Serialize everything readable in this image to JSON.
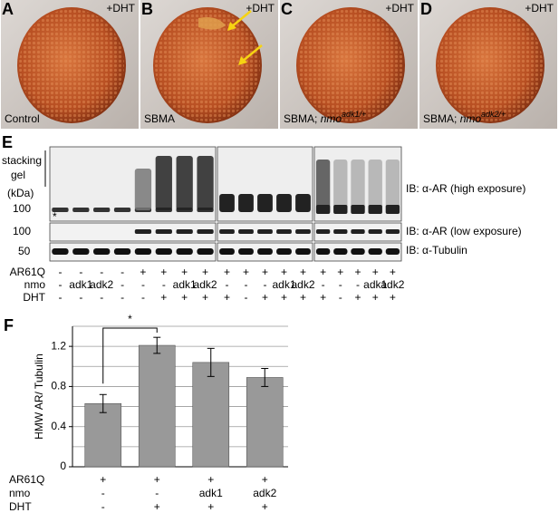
{
  "panels_top": [
    {
      "letter": "A",
      "treatment": "+DHT",
      "label": {
        "text": "Control"
      }
    },
    {
      "letter": "B",
      "treatment": "+DHT",
      "label": {
        "text": "SBMA"
      }
    },
    {
      "letter": "C",
      "treatment": "+DHT",
      "label": {
        "text": "SBMA; ",
        "gene": "nmo",
        "allele": "adk1/+"
      }
    },
    {
      "letter": "D",
      "treatment": "+DHT",
      "label": {
        "text": "SBMA; ",
        "gene": "nmo",
        "allele": "adk2/+"
      }
    }
  ],
  "panel_e": {
    "letter": "E",
    "marker_title": [
      "stacking",
      "gel"
    ],
    "unit": "(kDa)",
    "markers": [
      "100",
      "100",
      "50"
    ],
    "asterisk": "*",
    "blot_labels": [
      "IB: α-AR (high exposure)",
      "IB: α-AR (low exposure)",
      "IB: α-Tubulin"
    ],
    "rows": [
      {
        "label": "AR61Q",
        "cells": [
          "-",
          "-",
          "-",
          "-",
          "+",
          "+",
          "+",
          "+",
          "+",
          "+",
          "+",
          "+",
          "+",
          "+",
          "+",
          "+",
          "+",
          "+"
        ]
      },
      {
        "label": "nmo",
        "cells": [
          "-",
          "adk1",
          "adk2",
          "-",
          "-",
          "-",
          "adk1",
          "adk2",
          "-",
          "-",
          "-",
          "adk1",
          "adk2",
          "-",
          "-",
          "-",
          "adk1",
          "adk2"
        ]
      },
      {
        "label": "DHT",
        "cells": [
          "-",
          "-",
          "-",
          "-",
          "-",
          "+",
          "+",
          "+",
          "+",
          "-",
          "+",
          "+",
          "+",
          "+",
          "-",
          "+",
          "+",
          "+"
        ]
      }
    ]
  },
  "chart_data": {
    "type": "bar",
    "letter": "F",
    "y_label": "HMW AR/ Tubulin",
    "values": [
      0.63,
      1.21,
      1.04,
      0.89
    ],
    "errors": [
      0.09,
      0.08,
      0.14,
      0.09
    ],
    "color": "#999999",
    "ylim": [
      0,
      1.4
    ],
    "yticks": [
      0,
      0.4,
      0.8,
      1.2
    ],
    "minor_grid": [
      0.2,
      0.6,
      1.0,
      1.4
    ],
    "grid": true,
    "significance": {
      "from": 0,
      "to": 1,
      "label": "*"
    },
    "conditions": [
      {
        "label": "AR61Q",
        "cells": [
          "+",
          "+",
          "+",
          "+"
        ]
      },
      {
        "label": "nmo",
        "cells": [
          "-",
          "-",
          "adk1",
          "adk2"
        ]
      },
      {
        "label": "DHT",
        "cells": [
          "-",
          "+",
          "+",
          "+"
        ]
      }
    ]
  }
}
